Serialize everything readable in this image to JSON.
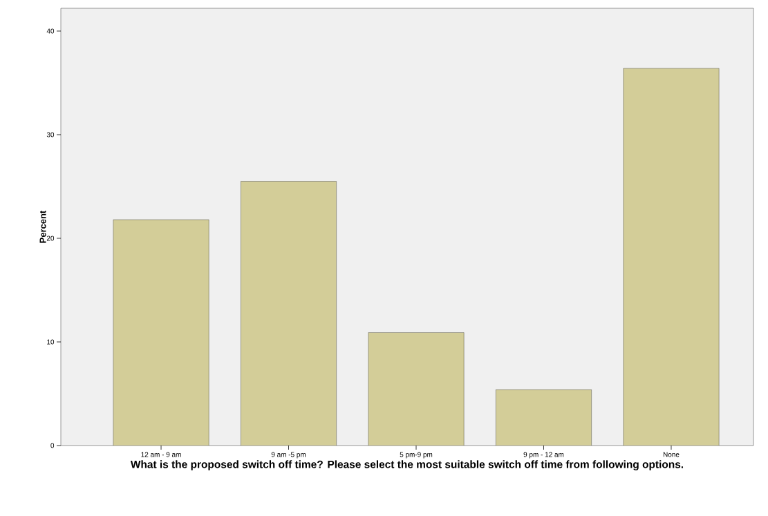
{
  "chart_data": {
    "type": "bar",
    "categories": [
      "12 am - 9 am",
      "9 am -5 pm",
      "5 pm-9 pm",
      "9 pm - 12 am",
      "None"
    ],
    "values": [
      21.8,
      25.5,
      10.9,
      5.4,
      36.4
    ],
    "color": "#d3cd98",
    "ylim": [
      0,
      42.2
    ],
    "yticks": [
      0,
      10,
      20,
      30,
      40
    ],
    "xlabel": "What is the proposed switch off time? Please select the most suitable switch off time from following options.",
    "ylabel": "Percent",
    "grid": false
  }
}
